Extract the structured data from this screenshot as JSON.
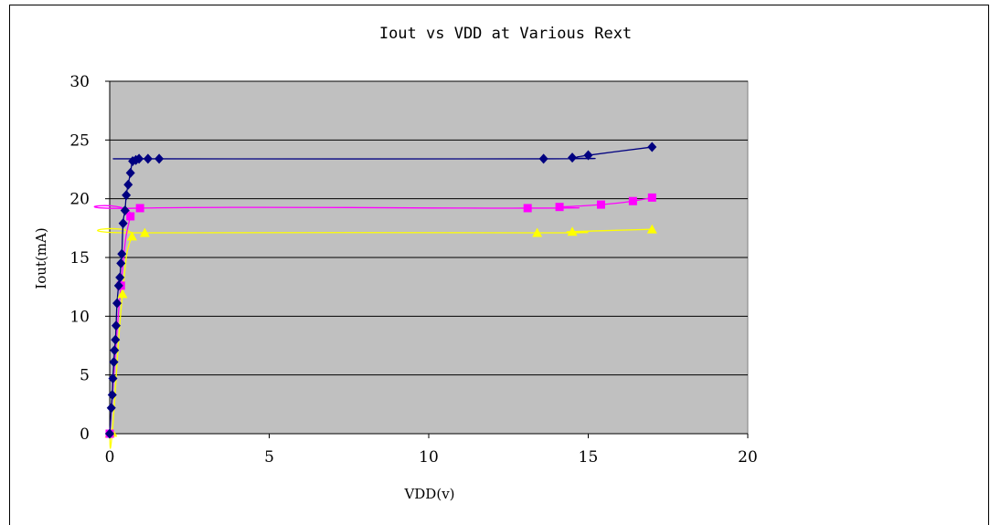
{
  "chart_data": {
    "type": "scatter",
    "title": "Iout vs VDD at Various Rext",
    "xlabel": "VDD(v)",
    "ylabel": "Iout(mA)",
    "xlim": [
      0,
      20
    ],
    "ylim": [
      0,
      30
    ],
    "xticks": [
      0,
      5,
      10,
      15,
      20
    ],
    "yticks": [
      0,
      5,
      10,
      15,
      20,
      25,
      30
    ],
    "plot_background": "#c0c0c0",
    "grid": "horizontal",
    "legend": "none",
    "series": [
      {
        "color": "#000080",
        "marker": "diamond",
        "x": [
          0.0,
          0.05,
          0.08,
          0.1,
          0.13,
          0.15,
          0.18,
          0.2,
          0.23,
          0.28,
          0.32,
          0.35,
          0.38,
          0.42,
          0.48,
          0.52,
          0.58,
          0.65,
          0.72,
          0.82,
          0.92,
          1.2,
          1.55,
          13.6,
          14.5,
          15.0,
          17.0
        ],
        "y": [
          0.0,
          2.2,
          3.3,
          4.7,
          6.1,
          7.1,
          8.0,
          9.2,
          11.1,
          12.6,
          13.3,
          14.5,
          15.3,
          17.9,
          19.0,
          20.3,
          21.2,
          22.2,
          23.2,
          23.3,
          23.4,
          23.4,
          23.4,
          23.4,
          23.5,
          23.7,
          24.4
        ]
      },
      {
        "color": "#ff00ff",
        "marker": "square",
        "x": [
          0.0,
          0.35,
          0.65,
          0.95,
          13.1,
          14.1,
          15.4,
          16.4,
          17.0
        ],
        "y": [
          0.0,
          12.6,
          18.5,
          19.2,
          19.2,
          19.3,
          19.5,
          19.8,
          20.1
        ]
      },
      {
        "color": "#ffff00",
        "marker": "triangle",
        "x": [
          0.0,
          0.08,
          0.4,
          0.7,
          1.1,
          13.4,
          14.5,
          17.0
        ],
        "y": [
          0.0,
          0.1,
          11.9,
          16.8,
          17.1,
          17.1,
          17.2,
          17.4
        ]
      }
    ]
  }
}
